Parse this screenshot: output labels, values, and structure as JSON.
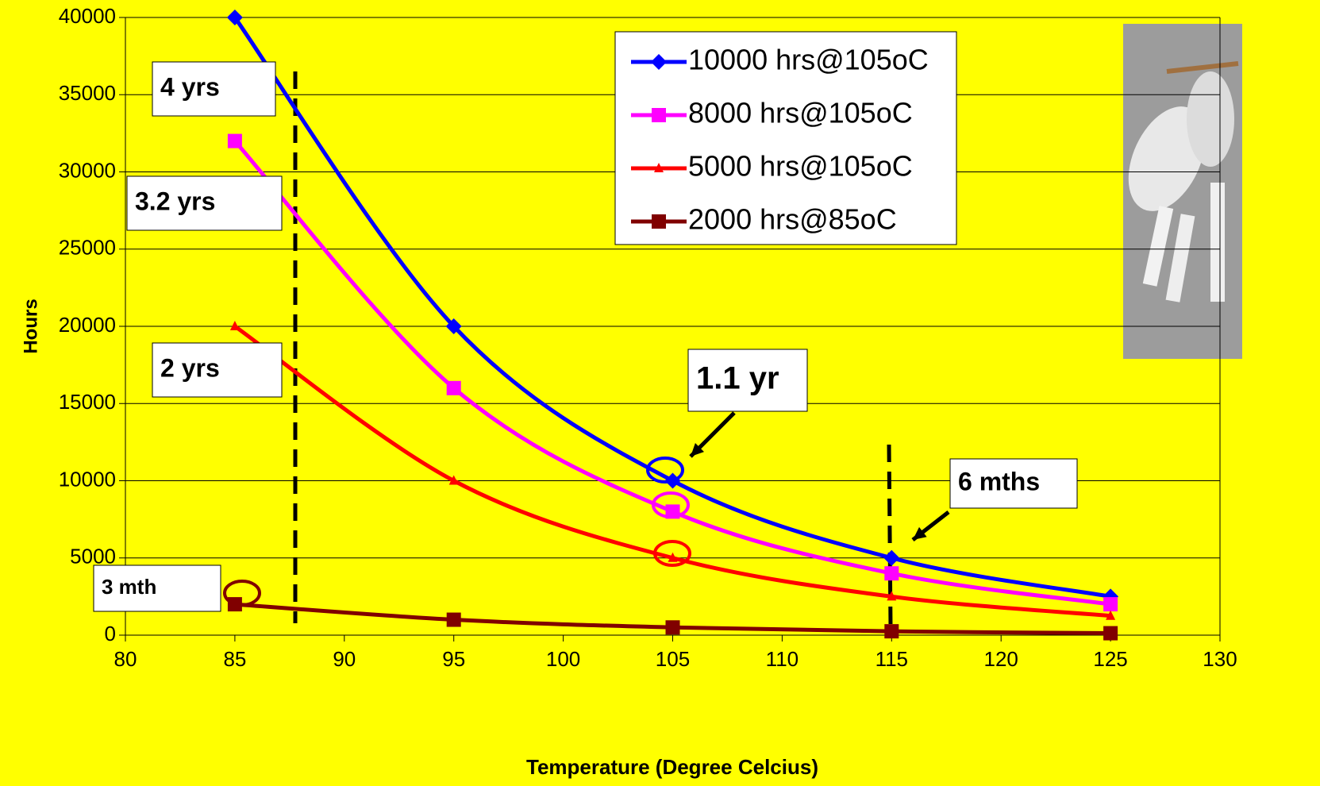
{
  "chart_data": {
    "type": "line",
    "x_label": "Temperature (Degree Celcius)",
    "y_label": "Hours",
    "x": [
      85,
      95,
      105,
      115,
      125
    ],
    "series": [
      {
        "name": "10000 hrs@105oC",
        "color": "#0000ff",
        "marker": "diamond",
        "values": [
          40000,
          20000,
          10000,
          5000,
          2500
        ]
      },
      {
        "name": "8000 hrs@105oC",
        "color": "#ff00ff",
        "marker": "square",
        "values": [
          32000,
          16000,
          8000,
          4000,
          2000
        ]
      },
      {
        "name": "5000 hrs@105oC",
        "color": "#ff0000",
        "marker": "triangle",
        "values": [
          20000,
          10000,
          5000,
          2500,
          1250
        ]
      },
      {
        "name": "2000 hrs@85oC",
        "color": "#800000",
        "marker": "square",
        "values": [
          2000,
          1000,
          500,
          250,
          125
        ]
      }
    ],
    "xlim": [
      80,
      130
    ],
    "xticks": [
      80,
      85,
      90,
      95,
      100,
      105,
      110,
      115,
      120,
      125,
      130
    ],
    "ylim": [
      0,
      40000
    ],
    "yticks": [
      0,
      5000,
      10000,
      15000,
      20000,
      25000,
      30000,
      35000,
      40000
    ],
    "grid": true,
    "annotations": [
      "4 yrs",
      "3.2 yrs",
      "2 yrs",
      "1.1 yr",
      "6 mths",
      "3 mth"
    ]
  }
}
